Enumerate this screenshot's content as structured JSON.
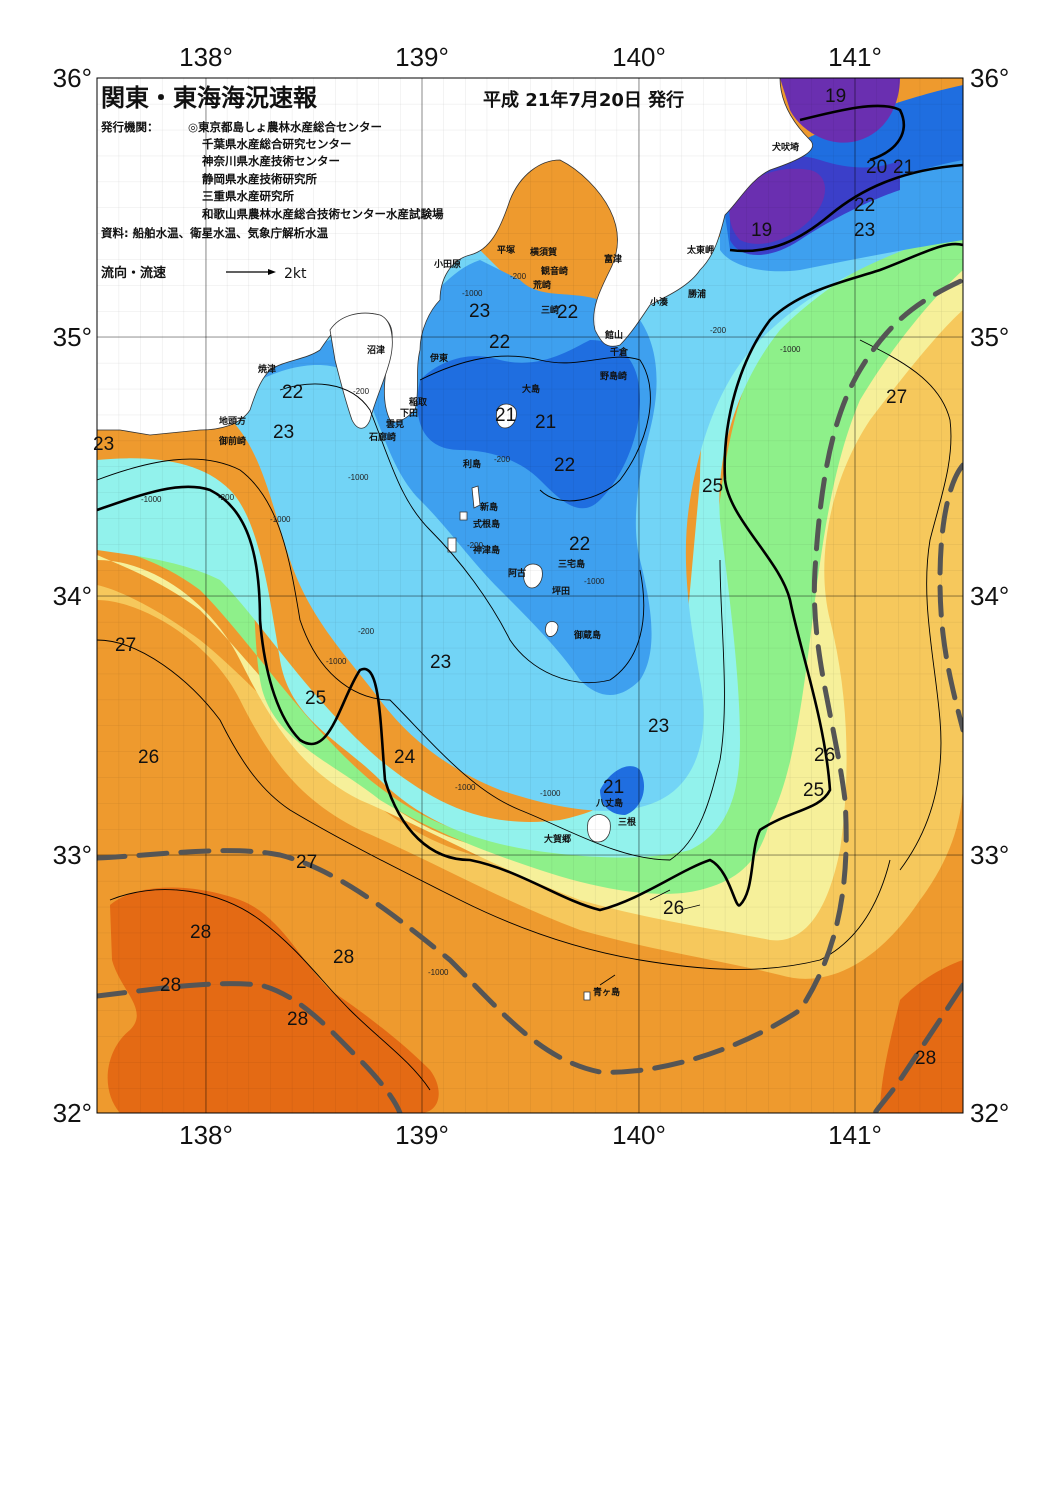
{
  "title": "関東・東海海況速報",
  "issue_date": "平成  21年7月20日  発行",
  "publisher_label": "発行機関：",
  "publishers": [
    "◎東京都島しょ農林水産総合センター",
    "千葉県水産総合研究センター",
    "神奈川県水産技術センター",
    "静岡県水産技術研究所",
    "三重県水産研究所",
    "和歌山県農林水産総合技術センター水産試験場"
  ],
  "source_note": "資料: 船舶水温、衛星水温、気象庁解析水温",
  "flow_legend": {
    "label": "流向・流速",
    "speed": "2kt"
  },
  "axes": {
    "longitude_labels": [
      "138°",
      "139°",
      "140°",
      "141°"
    ],
    "latitude_labels": [
      "36°",
      "35°",
      "34°",
      "33°",
      "32°"
    ]
  },
  "colors": {
    "t19": "#6a2fb0",
    "t20": "#3b3fc9",
    "t21": "#1f6ee0",
    "t22": "#3ea0ef",
    "t23": "#72d4f6",
    "t24": "#92f2ec",
    "t25": "#8ef08a",
    "t26": "#f6f09a",
    "t27": "#f6c85c",
    "t28": "#ee9a2e",
    "t29": "#e46a14",
    "land": "#ffffff",
    "kuroshio": "#555555"
  },
  "places": [
    {
      "name": "犬吠埼"
    },
    {
      "name": "太東岬"
    },
    {
      "name": "勝浦"
    },
    {
      "name": "小湊"
    },
    {
      "name": "富津"
    },
    {
      "name": "横須賀"
    },
    {
      "name": "平塚"
    },
    {
      "name": "小田原"
    },
    {
      "name": "観音崎"
    },
    {
      "name": "荒崎"
    },
    {
      "name": "三崎"
    },
    {
      "name": "館山"
    },
    {
      "name": "千倉"
    },
    {
      "name": "野島崎"
    },
    {
      "name": "沼津"
    },
    {
      "name": "伊東"
    },
    {
      "name": "焼津"
    },
    {
      "name": "稲取"
    },
    {
      "name": "下田"
    },
    {
      "name": "雲見"
    },
    {
      "name": "石廊崎"
    },
    {
      "name": "地頭方"
    },
    {
      "name": "御前崎"
    },
    {
      "name": "大島"
    },
    {
      "name": "利島"
    },
    {
      "name": "新島"
    },
    {
      "name": "式根島"
    },
    {
      "name": "神津島"
    },
    {
      "name": "三宅島"
    },
    {
      "name": "阿古"
    },
    {
      "name": "坪田"
    },
    {
      "name": "御蔵島"
    },
    {
      "name": "八丈島"
    },
    {
      "name": "三根"
    },
    {
      "name": "大賀郷"
    },
    {
      "name": "青ヶ島"
    }
  ],
  "temperature_labels": [
    {
      "value": "19"
    },
    {
      "value": "20"
    },
    {
      "value": "21"
    },
    {
      "value": "22"
    },
    {
      "value": "23"
    },
    {
      "value": "19"
    },
    {
      "value": "23"
    },
    {
      "value": "22"
    },
    {
      "value": "22"
    },
    {
      "value": "21"
    },
    {
      "value": "21"
    },
    {
      "value": "22"
    },
    {
      "value": "22"
    },
    {
      "value": "23"
    },
    {
      "value": "23"
    },
    {
      "value": "27"
    },
    {
      "value": "25"
    },
    {
      "value": "22"
    },
    {
      "value": "27"
    },
    {
      "value": "25"
    },
    {
      "value": "23"
    },
    {
      "value": "26"
    },
    {
      "value": "24"
    },
    {
      "value": "23"
    },
    {
      "value": "26"
    },
    {
      "value": "25"
    },
    {
      "value": "21"
    },
    {
      "value": "27"
    },
    {
      "value": "26"
    },
    {
      "value": "28"
    },
    {
      "value": "28"
    },
    {
      "value": "28"
    },
    {
      "value": "28"
    },
    {
      "value": "28"
    }
  ],
  "depth_labels": [
    {
      "value": "-1000"
    },
    {
      "value": "-200"
    },
    {
      "value": "-200"
    },
    {
      "value": "-1000"
    },
    {
      "value": "-200"
    },
    {
      "value": "-1000"
    },
    {
      "value": "-200"
    },
    {
      "value": "-1000"
    },
    {
      "value": "-200"
    },
    {
      "value": "-1000"
    },
    {
      "value": "-200"
    },
    {
      "value": "-200"
    },
    {
      "value": "-1000"
    },
    {
      "value": "-1000"
    },
    {
      "value": "-1000"
    },
    {
      "value": "-1000"
    },
    {
      "value": "-1000"
    }
  ]
}
